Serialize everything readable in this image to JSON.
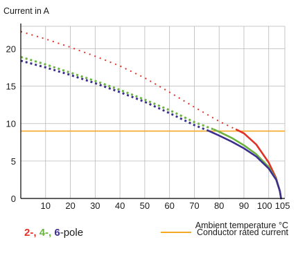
{
  "colors": {
    "pole2": "#e03127",
    "pole4": "#6bb33f",
    "pole6": "#3b2f8f",
    "rated": "#f5a623",
    "grid": "#b8b8b8",
    "axis": "#000000"
  },
  "legend": {
    "pole2_label": "2-,",
    "pole4_label": "4-,",
    "pole6_label": "6",
    "pole_suffix": "-pole",
    "rated_label": "Conductor rated current"
  },
  "chart_data": {
    "type": "line",
    "ylabel": "Current in A",
    "xlabel": "Ambient temperature °C",
    "xlim": [
      0,
      106.5
    ],
    "ylim": [
      0,
      23
    ],
    "x_ticks": [
      10,
      20,
      30,
      40,
      50,
      60,
      70,
      80,
      90,
      100,
      105
    ],
    "y_ticks": [
      0,
      5,
      10,
      15,
      20
    ],
    "grid": true,
    "legend_position": "bottom",
    "series": [
      {
        "name": "2-pole",
        "color": "#e03127",
        "dotted_x": [
          0,
          10,
          20,
          30,
          40,
          50,
          60,
          70,
          80,
          87
        ],
        "dotted_y": [
          22.3,
          21.3,
          20.2,
          19.0,
          17.7,
          16.1,
          14.2,
          12.2,
          10.3,
          9.2
        ],
        "solid_x": [
          87,
          90,
          95,
          100,
          103,
          104.5,
          105
        ],
        "solid_y": [
          9.2,
          8.7,
          7.2,
          4.8,
          2.7,
          1.0,
          0
        ]
      },
      {
        "name": "4-pole",
        "color": "#6bb33f",
        "dotted_x": [
          0,
          10,
          20,
          30,
          40,
          50,
          60,
          70,
          78
        ],
        "dotted_y": [
          18.9,
          17.9,
          16.8,
          15.7,
          14.5,
          13.2,
          11.8,
          10.2,
          9.2
        ],
        "solid_x": [
          78,
          80,
          85,
          90,
          95,
          100,
          103,
          104.5,
          105
        ],
        "solid_y": [
          9.2,
          8.9,
          8.1,
          7.1,
          5.9,
          4.2,
          2.6,
          1.0,
          0
        ]
      },
      {
        "name": "6-pole",
        "color": "#3b2f8f",
        "dotted_x": [
          0,
          10,
          20,
          30,
          40,
          50,
          60,
          70,
          76
        ],
        "dotted_y": [
          18.4,
          17.5,
          16.5,
          15.4,
          14.2,
          12.9,
          11.4,
          9.8,
          9.0
        ],
        "solid_x": [
          76,
          80,
          85,
          90,
          95,
          100,
          103,
          104.5,
          105
        ],
        "solid_y": [
          9.0,
          8.4,
          7.6,
          6.7,
          5.6,
          4.0,
          2.5,
          1.0,
          0
        ]
      }
    ],
    "reference_lines": [
      {
        "name": "Conductor rated current",
        "y": 9,
        "color": "#f5a623"
      }
    ]
  }
}
